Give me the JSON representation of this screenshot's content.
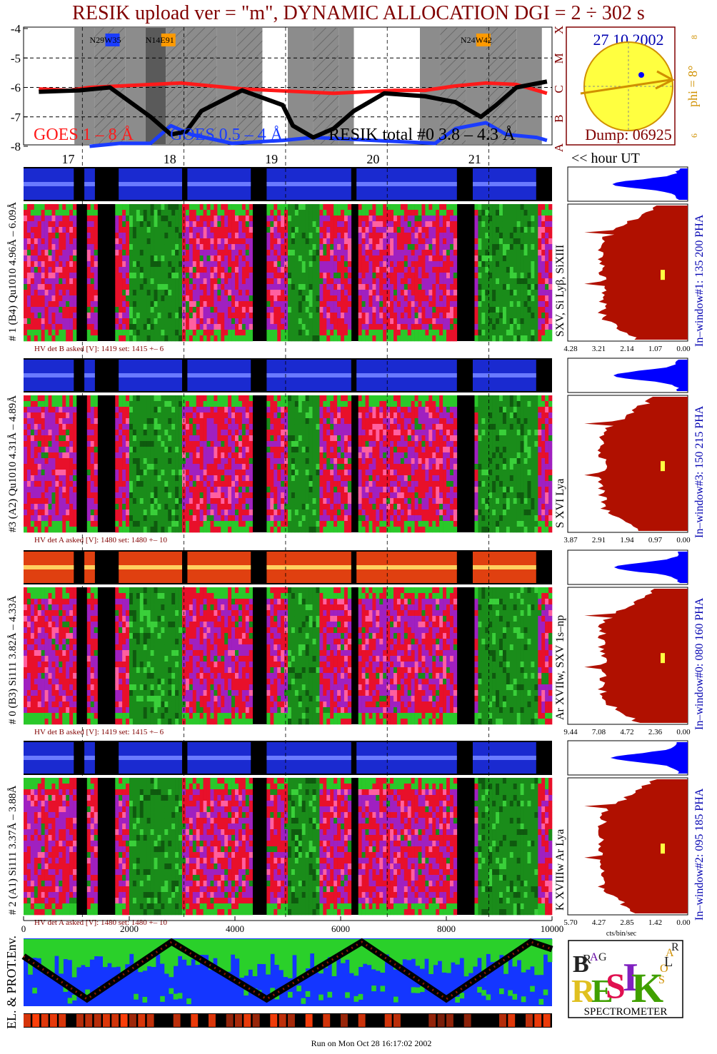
{
  "title": "RESIK upload ver = \"m\", DYNAMIC ALLOCATION  DGI =   2 ÷ 302 s",
  "colors": {
    "title": "#800000",
    "goes_long": "#ff1a1a",
    "goes_short": "#1a3cff",
    "resik_total": "#000000",
    "gray_band": "#8c8c8c",
    "dark_gray_band": "#5a5a5a",
    "spectrum_red": "#e8102a",
    "spectrum_magenta": "#a020c0",
    "spectrum_green": "#1a8c1a",
    "histogram_red": "#b01000",
    "histogram_blue": "#0000ff",
    "sun_yellow": "#ffff40",
    "sun_orange": "#d09000",
    "label_blue": "#0000b0"
  },
  "goes": {
    "y_ticks": [
      "-4",
      "-5",
      "-6",
      "-7",
      "-8"
    ],
    "class_letters": [
      "X",
      "M",
      "C",
      "B",
      "A"
    ],
    "labels": {
      "long": "GOES 1 – 8 Å",
      "short": "GOES 0.5 – 4 Å",
      "resik": "RESIK total #0  3.8 – 4.3 Å"
    },
    "regions": [
      "N29W35",
      "N14E91",
      "N24W42"
    ]
  },
  "time_axis": {
    "hours": [
      "17",
      "18",
      "19",
      "20",
      "21"
    ],
    "unit_label": "<< hour UT"
  },
  "sun": {
    "date": "27 10 2002",
    "phi_label": "phi =  8°",
    "phi_marks": [
      "8",
      "6"
    ],
    "dump": "Dump: 06925"
  },
  "channels": [
    {
      "id": "ch1",
      "left_label": "# 1 (B4) Qu1010 4.96Å – 6.09Å",
      "line_label": "SXV, Si Lyβ, SiXIII",
      "right_label": "In–window#1:  135 200 PHA",
      "hv": "HV det B asked [V]:  1419  set:  1415  +–    6",
      "axis": [
        "4.28",
        "3.21",
        "2.14",
        "1.07",
        "0.00"
      ]
    },
    {
      "id": "ch3",
      "left_label": "#3 (A2) Qu1010  4.31Å – 4.89Å",
      "line_label": "S XVI Lya",
      "right_label": "In–window#3:  150 215 PHA",
      "hv": "HV det A asked [V]:  1480  set:  1480  +–    10",
      "axis": [
        "3.87",
        "2.91",
        "1.94",
        "0.97",
        "0.00"
      ]
    },
    {
      "id": "ch0",
      "left_label": "# 0 (B3) Si111  3.82Å – 4.33Å",
      "line_label": "Ar XVIIw,  SXV 1s–np",
      "right_label": "In–window#0:  080 160 PHA",
      "hv": "HV det B asked [V]:  1419  set:  1415  +–    6",
      "axis": [
        "9.44",
        "7.08",
        "4.72",
        "2.36",
        "0.00"
      ]
    },
    {
      "id": "ch2",
      "left_label": "# 2 (A1) Si111  3.37Å – 3.88Å",
      "line_label": "K XVIIIw  Ar Lya",
      "right_label": "In–window#2:  095 185 PHA",
      "hv": "HV det A asked [V]:  1480  set:  1480  +–    10",
      "axis": [
        "5.70",
        "4.27",
        "2.85",
        "1.42",
        "0.00"
      ]
    }
  ],
  "histogram_unit": "cts/bin/sec",
  "bin_axis": [
    "0",
    "2000",
    "4000",
    "6000",
    "8000",
    "10000"
  ],
  "env_label": "EL. & PROT.Env.",
  "logo": {
    "letters": [
      "B",
      "R",
      "A",
      "G",
      "R",
      "E",
      "S",
      "I",
      "K",
      "S",
      "O",
      "L",
      "A",
      "R"
    ],
    "caption": "SPECTROMETER"
  },
  "footer": "Run on Mon Oct 28 16:17:02 2002",
  "chart_data": {
    "type": "line",
    "title": "RESIK upload ver = \"m\", DYNAMIC ALLOCATION  DGI =   2 ÷ 302 s",
    "xlabel": "<< hour UT",
    "ylabel": "",
    "x_ticks": [
      "17",
      "18",
      "19",
      "20",
      "21"
    ],
    "ylim": [
      -8,
      -4
    ],
    "series": [
      {
        "name": "GOES 1 – 8 Å",
        "x": [
          16.5,
          16.8,
          17.0,
          17.3,
          17.6,
          17.9,
          18.2,
          18.5,
          18.8,
          19.1,
          19.4,
          19.7,
          20.0,
          20.3,
          20.6,
          20.9,
          21.2,
          21.5
        ],
        "values": [
          -6.05,
          -6.1,
          -6.0,
          -5.95,
          -5.9,
          -5.85,
          -5.95,
          -6.05,
          -6.1,
          -6.15,
          -6.2,
          -6.15,
          -6.1,
          -6.1,
          -5.95,
          -5.85,
          -5.9,
          -6.2
        ]
      },
      {
        "name": "GOES 0.5 – 4 Å",
        "x": [
          17.0,
          17.3,
          17.6,
          17.8,
          18.0,
          18.4,
          18.9,
          19.2,
          20.4,
          20.6,
          20.9,
          21.1,
          21.4,
          21.5
        ],
        "values": [
          -8.0,
          -7.9,
          -7.9,
          -7.3,
          -7.6,
          -7.9,
          -7.8,
          -7.7,
          -7.9,
          -7.4,
          -7.2,
          -7.6,
          -7.7,
          -7.8
        ]
      },
      {
        "name": "RESIK total #0  3.8 – 4.3 Å",
        "x": [
          16.5,
          16.9,
          17.2,
          17.4,
          17.6,
          17.8,
          17.95,
          18.1,
          18.5,
          18.9,
          19.0,
          19.2,
          19.4,
          19.6,
          19.9,
          20.3,
          20.6,
          20.85,
          21.0,
          21.2,
          21.5
        ],
        "values": [
          -6.15,
          -6.1,
          -6.0,
          -6.5,
          -7.0,
          -7.6,
          -7.5,
          -6.8,
          -6.1,
          -6.6,
          -7.3,
          -7.7,
          -7.4,
          -6.8,
          -6.2,
          -6.3,
          -6.5,
          -7.0,
          -6.6,
          -6.0,
          -5.8
        ]
      }
    ]
  }
}
